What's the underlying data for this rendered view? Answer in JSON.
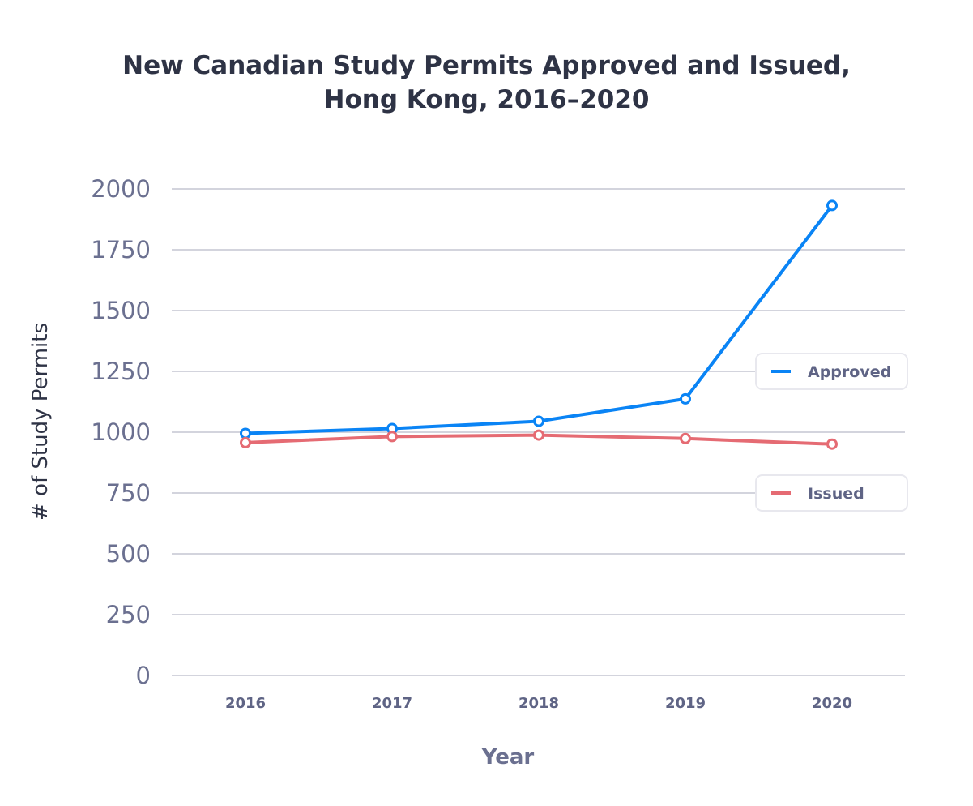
{
  "chart_data": {
    "type": "line",
    "title": [
      "New Canadian Study Permits Approved and Issued,",
      "Hong Kong, 2016–2020"
    ],
    "xlabel": "Year",
    "ylabel": "# of Study Permits",
    "categories": [
      "2016",
      "2017",
      "2018",
      "2019",
      "2020"
    ],
    "ylim": [
      0,
      2000
    ],
    "yticks": [
      0,
      250,
      500,
      750,
      1000,
      1250,
      1500,
      1750,
      2000
    ],
    "grid": true,
    "legend_placement": "right",
    "series": [
      {
        "name": "Approved",
        "color": "#0a84f5",
        "values": [
          995,
          1015,
          1045,
          1137,
          1932
        ]
      },
      {
        "name": "Issued",
        "color": "#e56b73",
        "values": [
          957,
          982,
          988,
          974,
          951
        ]
      }
    ]
  }
}
